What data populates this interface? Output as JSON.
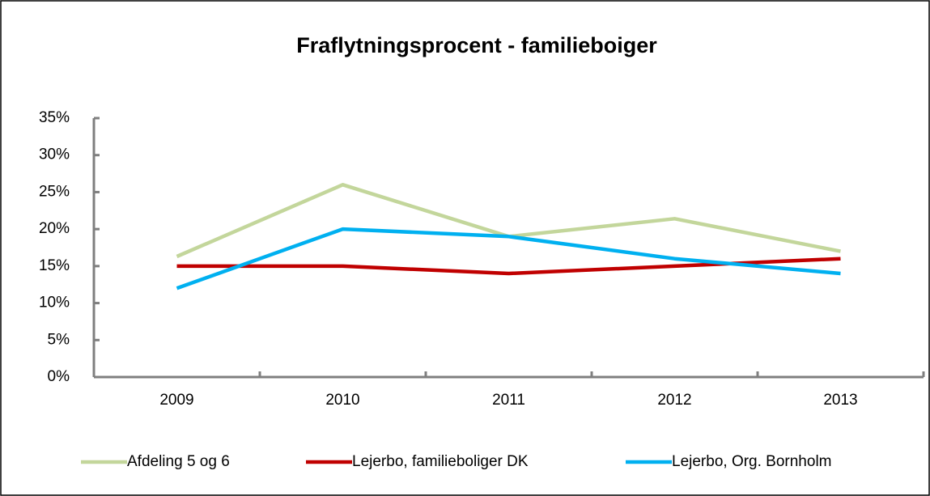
{
  "chart_data": {
    "type": "line",
    "title": "Fraflytningsprocent - familieboiger",
    "categories": [
      "2009",
      "2010",
      "2011",
      "2012",
      "2013"
    ],
    "series": [
      {
        "name": "Afdeling 5 og 6",
        "color": "#c3d69b",
        "values": [
          16.3,
          26.0,
          19.0,
          21.4,
          17.0
        ]
      },
      {
        "name": "Lejerbo, familieboliger DK",
        "color": "#c00000",
        "values": [
          15,
          15,
          14,
          15,
          16
        ]
      },
      {
        "name": "Lejerbo, Org. Bornholm",
        "color": "#00b0f0",
        "values": [
          12,
          20,
          19,
          16,
          14
        ]
      }
    ],
    "ylim": [
      0,
      35
    ],
    "yticks": [
      {
        "value": 0,
        "label": "0%"
      },
      {
        "value": 5,
        "label": "5%"
      },
      {
        "value": 10,
        "label": "10%"
      },
      {
        "value": 15,
        "label": "15%"
      },
      {
        "value": 20,
        "label": "20%"
      },
      {
        "value": 25,
        "label": "25%"
      },
      {
        "value": 30,
        "label": "30%"
      },
      {
        "value": 35,
        "label": "35%"
      }
    ],
    "legend": "bottom"
  }
}
